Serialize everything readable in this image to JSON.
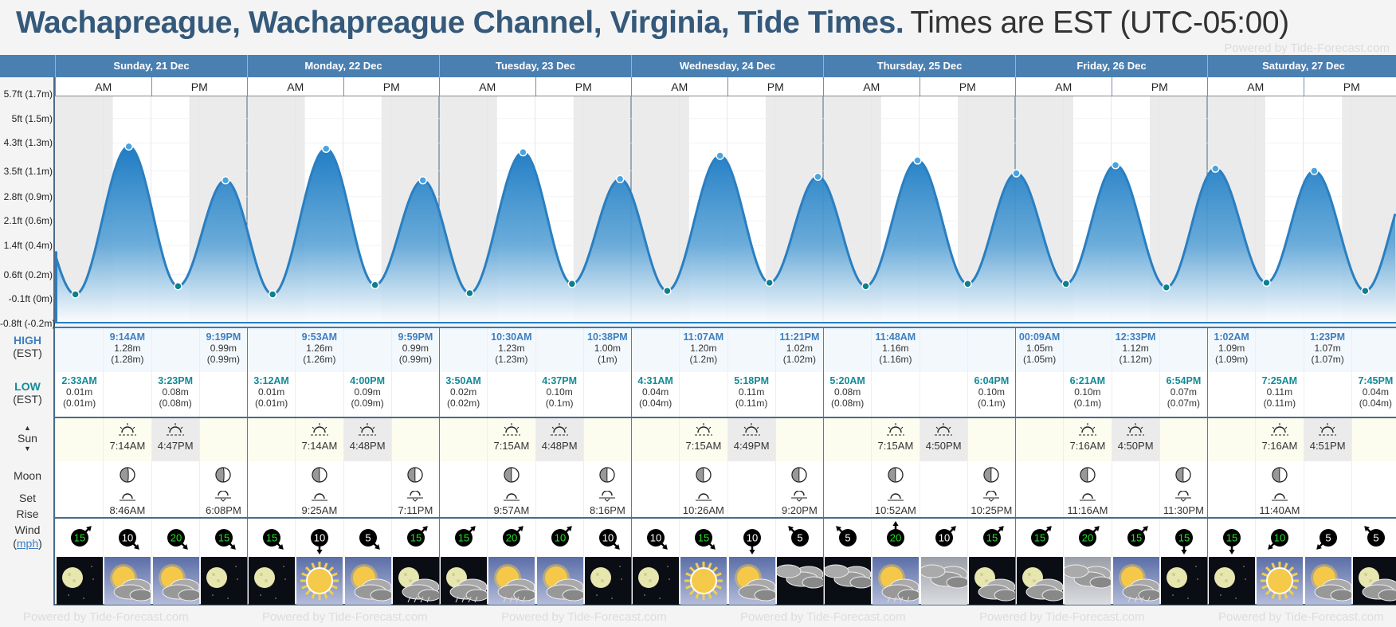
{
  "title": {
    "location": "Wachapreague, Wachapreague Channel, Virginia, Tide Times.",
    "timezone": "Times are EST (UTC-05:00)"
  },
  "watermark": "Powered by Tide-Forecast.com",
  "days": [
    "Sunday, 21 Dec",
    "Monday, 22 Dec",
    "Tuesday, 23 Dec",
    "Wednesday, 24 Dec",
    "Thursday, 25 Dec",
    "Friday, 26 Dec",
    "Saturday, 27 Dec"
  ],
  "am": "AM",
  "pm": "PM",
  "labels": {
    "high": "HIGH",
    "low": "LOW",
    "est": "(EST)",
    "sun": "Sun",
    "moon": "Moon",
    "set": "Set",
    "rise": "Rise",
    "wind": "Wind",
    "mph": "mph"
  },
  "colors": {
    "header": "#4a7fb1",
    "title": "#34597a",
    "high": "#3d7fc1",
    "low": "#138a96",
    "curve": "#2a7fc1"
  },
  "chart_data": {
    "type": "area",
    "y_ticks": [
      "5.7ft (1.7m)",
      "5ft (1.5m)",
      "4.3ft (1.3m)",
      "3.5ft (1.1m)",
      "2.8ft (0.9m)",
      "2.1ft (0.6m)",
      "1.4ft (0.4m)",
      "0.6ft (0.2m)",
      "-0.1ft (0m)",
      "-0.8ft (-0.2m)"
    ],
    "ylim_m": [
      -0.24,
      1.71
    ],
    "start_height_m": 0.38,
    "tides": [
      {
        "day": 0,
        "type": "low",
        "time": "2:33AM",
        "h": 0.01,
        "hr": 2.55,
        "alt": "(0.01m)"
      },
      {
        "day": 0,
        "type": "high",
        "time": "9:14AM",
        "h": 1.28,
        "hr": 9.23,
        "alt": "(1.28m)"
      },
      {
        "day": 0,
        "type": "low",
        "time": "3:23PM",
        "h": 0.08,
        "hr": 15.38,
        "alt": "(0.08m)"
      },
      {
        "day": 0,
        "type": "high",
        "time": "9:19PM",
        "h": 0.99,
        "hr": 21.32,
        "alt": "(0.99m)"
      },
      {
        "day": 1,
        "type": "low",
        "time": "3:12AM",
        "h": 0.01,
        "hr": 27.2,
        "alt": "(0.01m)"
      },
      {
        "day": 1,
        "type": "high",
        "time": "9:53AM",
        "h": 1.26,
        "hr": 33.88,
        "alt": "(1.26m)"
      },
      {
        "day": 1,
        "type": "low",
        "time": "4:00PM",
        "h": 0.09,
        "hr": 40.0,
        "alt": "(0.09m)"
      },
      {
        "day": 1,
        "type": "high",
        "time": "9:59PM",
        "h": 0.99,
        "hr": 45.98,
        "alt": "(0.99m)"
      },
      {
        "day": 2,
        "type": "low",
        "time": "3:50AM",
        "h": 0.02,
        "hr": 51.83,
        "alt": "(0.02m)"
      },
      {
        "day": 2,
        "type": "high",
        "time": "10:30AM",
        "h": 1.23,
        "hr": 58.5,
        "alt": "(1.23m)"
      },
      {
        "day": 2,
        "type": "low",
        "time": "4:37PM",
        "h": 0.1,
        "hr": 64.62,
        "alt": "(0.1m)"
      },
      {
        "day": 2,
        "type": "high",
        "time": "10:38PM",
        "h": 1.0,
        "hr": 70.63,
        "alt": "(1m)"
      },
      {
        "day": 3,
        "type": "low",
        "time": "4:31AM",
        "h": 0.04,
        "hr": 76.52,
        "alt": "(0.04m)"
      },
      {
        "day": 3,
        "type": "high",
        "time": "11:07AM",
        "h": 1.2,
        "hr": 83.12,
        "alt": "(1.2m)"
      },
      {
        "day": 3,
        "type": "low",
        "time": "5:18PM",
        "h": 0.11,
        "hr": 89.3,
        "alt": "(0.11m)"
      },
      {
        "day": 3,
        "type": "high",
        "time": "11:21PM",
        "h": 1.02,
        "hr": 95.35,
        "alt": "(1.02m)"
      },
      {
        "day": 4,
        "type": "low",
        "time": "5:20AM",
        "h": 0.08,
        "hr": 101.33,
        "alt": "(0.08m)"
      },
      {
        "day": 4,
        "type": "high",
        "time": "11:48AM",
        "h": 1.16,
        "hr": 107.8,
        "alt": "(1.16m)"
      },
      {
        "day": 4,
        "type": "low",
        "time": "6:04PM",
        "h": 0.1,
        "hr": 114.07,
        "alt": "(0.1m)"
      },
      {
        "day": 5,
        "type": "high",
        "time": "00:09AM",
        "h": 1.05,
        "hr": 120.15,
        "alt": "(1.05m)"
      },
      {
        "day": 5,
        "type": "low",
        "time": "6:21AM",
        "h": 0.1,
        "hr": 126.35,
        "alt": "(0.1m)"
      },
      {
        "day": 5,
        "type": "high",
        "time": "12:33PM",
        "h": 1.12,
        "hr": 132.55,
        "alt": "(1.12m)"
      },
      {
        "day": 5,
        "type": "low",
        "time": "6:54PM",
        "h": 0.07,
        "hr": 138.9,
        "alt": "(0.07m)"
      },
      {
        "day": 6,
        "type": "high",
        "time": "1:02AM",
        "h": 1.09,
        "hr": 145.03,
        "alt": "(1.09m)"
      },
      {
        "day": 6,
        "type": "low",
        "time": "7:25AM",
        "h": 0.11,
        "hr": 151.42,
        "alt": "(0.11m)"
      },
      {
        "day": 6,
        "type": "high",
        "time": "1:23PM",
        "h": 1.07,
        "hr": 157.38,
        "alt": "(1.07m)"
      },
      {
        "day": 6,
        "type": "low",
        "time": "7:45PM",
        "h": 0.04,
        "hr": 163.75,
        "alt": "(0.04m)"
      }
    ]
  },
  "sun": [
    {
      "rise": "7:14AM",
      "set": "4:47PM",
      "rise_hr": 7.23,
      "set_hr": 16.78
    },
    {
      "rise": "7:14AM",
      "set": "4:48PM",
      "rise_hr": 7.23,
      "set_hr": 16.8
    },
    {
      "rise": "7:15AM",
      "set": "4:48PM",
      "rise_hr": 7.25,
      "set_hr": 16.8
    },
    {
      "rise": "7:15AM",
      "set": "4:49PM",
      "rise_hr": 7.25,
      "set_hr": 16.82
    },
    {
      "rise": "7:15AM",
      "set": "4:50PM",
      "rise_hr": 7.25,
      "set_hr": 16.83
    },
    {
      "rise": "7:16AM",
      "set": "4:50PM",
      "rise_hr": 7.27,
      "set_hr": 16.83
    },
    {
      "rise": "7:16AM",
      "set": "4:51PM",
      "rise_hr": 7.27,
      "set_hr": 16.85
    }
  ],
  "moon": [
    {
      "rise": "8:46AM",
      "set": "6:08PM"
    },
    {
      "rise": "9:25AM",
      "set": "7:11PM"
    },
    {
      "rise": "9:57AM",
      "set": "8:16PM"
    },
    {
      "rise": "10:26AM",
      "set": "9:20PM"
    },
    {
      "rise": "10:52AM",
      "set": "10:25PM"
    },
    {
      "rise": "11:16AM",
      "set": "11:30PM"
    },
    {
      "rise": "11:40AM",
      "set": null
    }
  ],
  "wind": [
    {
      "v": "15",
      "dir": "ne",
      "g": true
    },
    {
      "v": "10",
      "dir": "se",
      "g": false
    },
    {
      "v": "20",
      "dir": "se",
      "g": true
    },
    {
      "v": "15",
      "dir": "se",
      "g": true
    },
    {
      "v": "15",
      "dir": "se",
      "g": true
    },
    {
      "v": "10",
      "dir": "s",
      "g": false
    },
    {
      "v": "5",
      "dir": "se",
      "g": false
    },
    {
      "v": "15",
      "dir": "ne",
      "g": true
    },
    {
      "v": "15",
      "dir": "ne",
      "g": true
    },
    {
      "v": "20",
      "dir": "ne",
      "g": true
    },
    {
      "v": "10",
      "dir": "ne",
      "g": true
    },
    {
      "v": "10",
      "dir": "se",
      "g": false
    },
    {
      "v": "10",
      "dir": "se",
      "g": false
    },
    {
      "v": "15",
      "dir": "se",
      "g": true
    },
    {
      "v": "10",
      "dir": "s",
      "g": false
    },
    {
      "v": "5",
      "dir": "nw",
      "g": false
    },
    {
      "v": "5",
      "dir": "nw",
      "g": false
    },
    {
      "v": "20",
      "dir": "n",
      "g": true
    },
    {
      "v": "10",
      "dir": "ne",
      "g": false
    },
    {
      "v": "15",
      "dir": "ne",
      "g": true
    },
    {
      "v": "15",
      "dir": "ne",
      "g": true
    },
    {
      "v": "20",
      "dir": "ne",
      "g": true
    },
    {
      "v": "15",
      "dir": "ne",
      "g": true
    },
    {
      "v": "15",
      "dir": "s",
      "g": true
    },
    {
      "v": "15",
      "dir": "s",
      "g": true
    },
    {
      "v": "10",
      "dir": "sw",
      "g": true
    },
    {
      "v": "5",
      "dir": "sw",
      "g": false
    },
    {
      "v": "5",
      "dir": "nw",
      "g": false
    }
  ],
  "weather": [
    "moon",
    "sun-cloud",
    "sun-cloud",
    "moon",
    "moon",
    "sun",
    "sun-cloud",
    "moon-cloud-rain",
    "moon-cloud-rain",
    "sun-cloud-rain",
    "sun-cloud",
    "moon",
    "moon",
    "sun",
    "sun-cloud",
    "cloud-night",
    "cloud-night",
    "sun-cloud-rain",
    "cloud-day",
    "moon-cloud",
    "moon-cloud",
    "cloud-day",
    "sun-cloud-rain",
    "moon",
    "moon",
    "sun",
    "sun-cloud",
    "moon-cloud"
  ]
}
